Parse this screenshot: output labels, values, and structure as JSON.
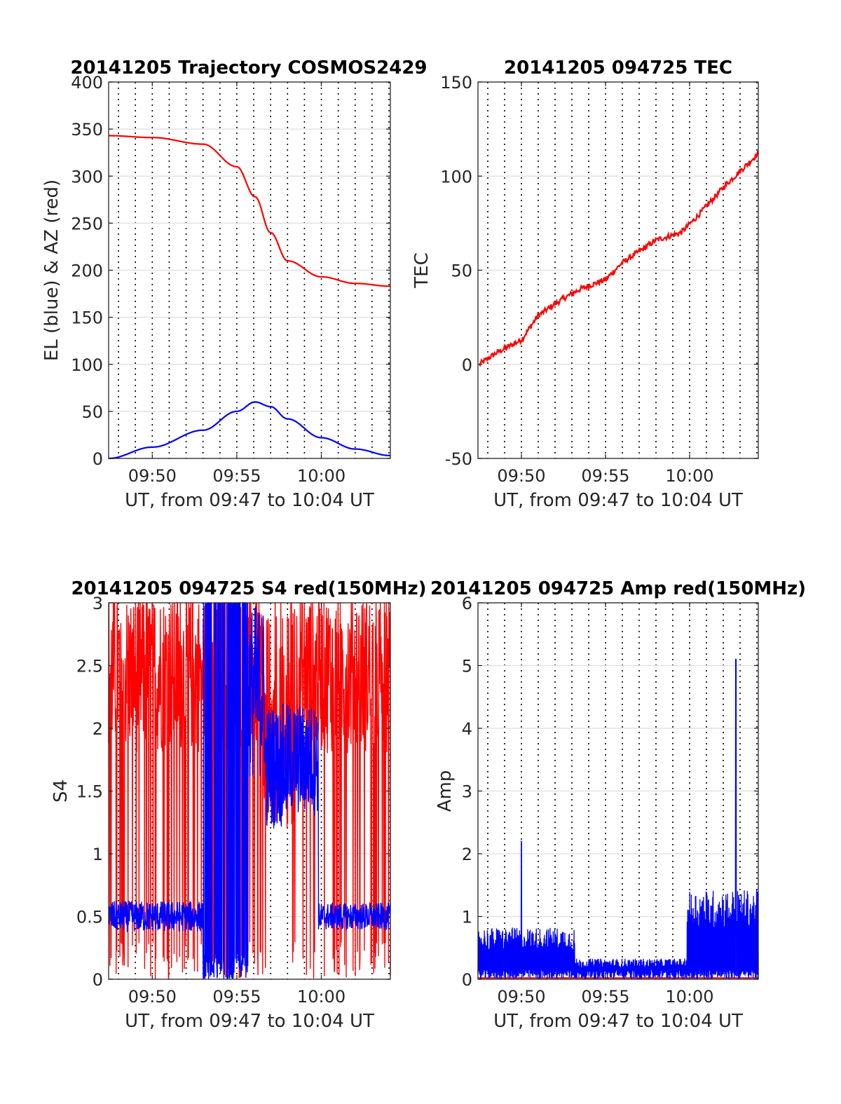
{
  "figure": {
    "background": "#ffffff"
  },
  "chart_data": [
    {
      "type": "line",
      "title": "20141205 Trajectory COSMOS2429",
      "xlabel": "UT, from 09:47 to 10:04 UT",
      "ylabel": "EL (blue) & AZ (red)",
      "xlim": [
        "09:47:25",
        "10:04:05"
      ],
      "ylim": [
        0,
        400
      ],
      "xtick_labels": [
        "09:50",
        "09:55",
        "10:00"
      ],
      "ytick_labels": [
        "0",
        "50",
        "100",
        "150",
        "200",
        "250",
        "300",
        "350",
        "400"
      ],
      "grid": true,
      "x": [
        "09:47:25",
        "09:50",
        "09:53",
        "09:55",
        "09:56:05",
        "09:57",
        "09:58",
        "10:00",
        "10:02",
        "10:04:05"
      ],
      "series": [
        {
          "color": "#ff0000",
          "values": [
            343,
            341,
            334,
            310,
            278,
            240,
            210,
            193,
            186,
            183
          ]
        },
        {
          "color": "#0000ff",
          "values": [
            0,
            12,
            30,
            50,
            60,
            55,
            42,
            22,
            10,
            3
          ]
        }
      ]
    },
    {
      "type": "line",
      "title": "20141205 094725 TEC",
      "xlabel": "UT, from 09:47 to 10:04 UT",
      "ylabel": "TEC",
      "xlim": [
        "09:47:25",
        "10:04:05"
      ],
      "ylim": [
        -50,
        150
      ],
      "xtick_labels": [
        "09:50",
        "09:55",
        "10:00"
      ],
      "ytick_labels": [
        "-50",
        "0",
        "50",
        "100",
        "150"
      ],
      "grid": true,
      "x": [
        "09:47:30",
        "09:48:30",
        "09:50",
        "09:51",
        "09:52:30",
        "09:53:30",
        "09:55",
        "09:56",
        "09:58",
        "09:59:30",
        "10:00:30",
        "10:02",
        "10:04:05"
      ],
      "series": [
        {
          "color": "#ff0000",
          "values": [
            0,
            6,
            13,
            26,
            35,
            40,
            45,
            54,
            66,
            70,
            79,
            94,
            112
          ]
        }
      ]
    },
    {
      "type": "line",
      "title": "20141205 094725 S4 red(150MHz)",
      "xlabel": "UT, from 09:47 to 10:04 UT",
      "ylabel": "S4",
      "xlim": [
        "09:47:25",
        "10:04:05"
      ],
      "ylim": [
        0,
        3
      ],
      "xtick_labels": [
        "09:50",
        "09:55",
        "10:00"
      ],
      "ytick_labels": [
        "0",
        "0.5",
        "1",
        "1.5",
        "2",
        "2.5",
        "3"
      ],
      "grid": true,
      "series": [
        {
          "color": "#ff0000",
          "description_values": "noisy, mostly 1.5 to 3 with frequent drops to 0 across 09:47-10:04"
        },
        {
          "color": "#0000ff",
          "values_summary": [
            0.5,
            0.5,
            0.5,
            0.55,
            3.0,
            2.0,
            1.6,
            1.4,
            0.5,
            0.5
          ]
        }
      ]
    },
    {
      "type": "line",
      "title": "20141205 094725 Amp red(150MHz)",
      "xlabel": "UT, from 09:47 to 10:04 UT",
      "ylabel": "Amp",
      "xlim": [
        "09:47:25",
        "10:04:05"
      ],
      "ylim": [
        0,
        6
      ],
      "xtick_labels": [
        "09:50",
        "09:55",
        "10:00"
      ],
      "ytick_labels": [
        "0",
        "1",
        "2",
        "3",
        "4",
        "5",
        "6"
      ],
      "grid": true,
      "series": [
        {
          "color": "#0000ff",
          "peaks": [
            {
              "x": "09:50:00",
              "y": 2.2
            },
            {
              "x": "10:02:45",
              "y": 5.1
            }
          ]
        },
        {
          "color": "#ff0000",
          "values_summary": [
            0,
            0,
            0,
            0
          ]
        }
      ]
    }
  ]
}
